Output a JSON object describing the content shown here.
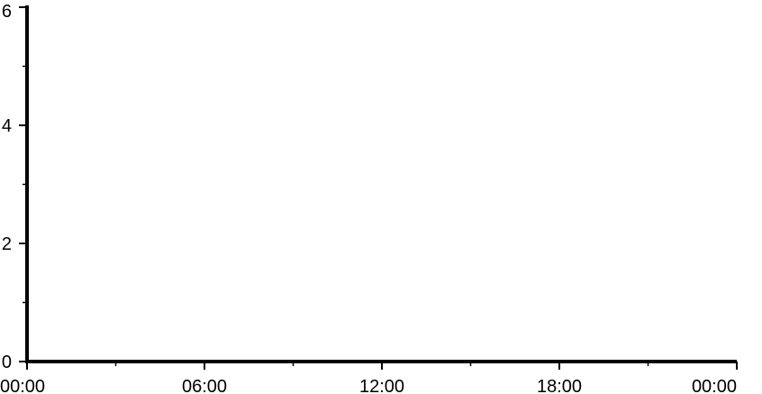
{
  "chart_data": {
    "type": "line",
    "title": "",
    "xlabel": "",
    "ylabel": "",
    "x_ticks": [
      "00:00",
      "06:00",
      "12:00",
      "18:00",
      "00:00"
    ],
    "x_minor_tick_interval_hours": 3,
    "x_range_hours": [
      0,
      24
    ],
    "y_ticks": [
      "0",
      "2",
      "4",
      "6"
    ],
    "ylim": [
      0,
      6
    ],
    "y_minor_tick_interval": 1,
    "grid": false,
    "series": []
  }
}
